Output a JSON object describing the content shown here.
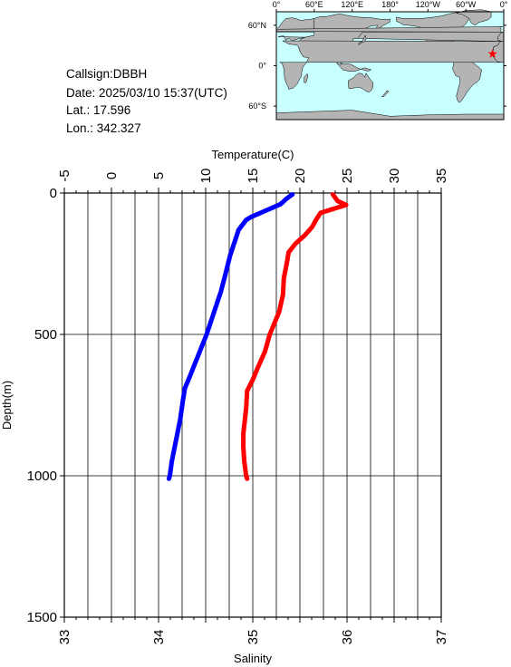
{
  "info": {
    "callsign": "Callsign:DBBH",
    "date": "Date:  2025/03/10 15:37(UTC)",
    "lat": "Lat.:  17.596",
    "lon": "Lon.:  342.327"
  },
  "map": {
    "ocean_color": "#c8ffff",
    "land_color": "#b4b4b4",
    "marker_color": "#ff0000",
    "marker_lat": 17.596,
    "marker_lon": 342.327,
    "lon_ticks": [
      "0°",
      "60°E",
      "120°E",
      "180°",
      "120°W",
      "60°W",
      "0°"
    ],
    "lat_ticks": [
      "60°N",
      "0°",
      "60°S"
    ]
  },
  "chart_data": {
    "type": "line",
    "title": "",
    "ylabel": "Depth(m)",
    "top_xlabel": "Temperature(C)",
    "bottom_xlabel": "Salinity",
    "ylim": [
      0,
      1500
    ],
    "y_ticks": [
      "0",
      "500",
      "1000",
      "1500"
    ],
    "temperature_lim": [
      -5,
      35
    ],
    "temperature_ticks": [
      "-5",
      "0",
      "5",
      "10",
      "15",
      "20",
      "25",
      "30",
      "35"
    ],
    "salinity_lim": [
      33,
      37
    ],
    "salinity_ticks": [
      "33",
      "34",
      "35",
      "36",
      "37"
    ],
    "grid": true,
    "series": [
      {
        "color": "#0000ff",
        "axis": "temperature",
        "depth": [
          5,
          12,
          22,
          32,
          40,
          85,
          95,
          130,
          180,
          220,
          300,
          350,
          400,
          450,
          500,
          550,
          600,
          650,
          690,
          730,
          800,
          850,
          900,
          950,
          1000,
          1010
        ],
        "values": [
          19.2,
          18.9,
          18.5,
          18.2,
          17.9,
          14.8,
          14.3,
          13.5,
          13.0,
          12.6,
          12.0,
          11.6,
          11.1,
          10.6,
          10.1,
          9.5,
          8.9,
          8.3,
          7.8,
          7.6,
          7.3,
          7.0,
          6.7,
          6.4,
          6.2,
          6.1
        ]
      },
      {
        "color": "#ff0000",
        "axis": "salinity",
        "depth": [
          5,
          28,
          42,
          70,
          90,
          120,
          150,
          180,
          210,
          250,
          300,
          360,
          420,
          500,
          560,
          620,
          660,
          700,
          760,
          850,
          900,
          950,
          1000,
          1010
        ],
        "values": [
          35.85,
          35.9,
          35.99,
          35.72,
          35.68,
          35.63,
          35.55,
          35.45,
          35.38,
          35.36,
          35.33,
          35.32,
          35.28,
          35.18,
          35.13,
          35.05,
          35.0,
          34.94,
          34.93,
          34.9,
          34.9,
          34.91,
          34.93,
          34.94
        ]
      }
    ]
  }
}
